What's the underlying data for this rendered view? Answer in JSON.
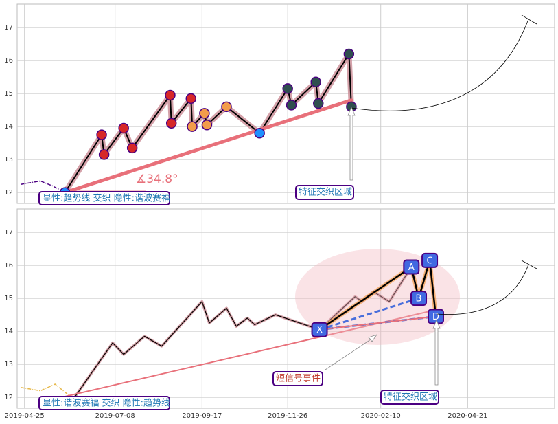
{
  "chart_data": [
    {
      "type": "line",
      "ylim": [
        11.67,
        17.71
      ],
      "yticks": [
        12,
        13,
        14,
        15,
        16,
        17
      ],
      "grid": true,
      "price": {
        "color": "#4b0082",
        "x": [
          "2019-04-22",
          "2019-05-08",
          "2019-05-18",
          "2019-05-28",
          "2019-06-27",
          "2019-06-29",
          "2019-07-15",
          "2019-07-22",
          "2019-08-22",
          "2019-08-23",
          "2019-09-08",
          "2019-09-09",
          "2019-09-19",
          "2019-09-21",
          "2019-10-07",
          "2019-11-03",
          "2019-11-26",
          "2019-11-29",
          "2019-12-19",
          "2019-12-21",
          "2020-01-15",
          "2020-01-17"
        ],
        "values": [
          12.25,
          12.35,
          12.2,
          12.0,
          13.75,
          13.15,
          13.95,
          13.35,
          14.95,
          14.1,
          14.85,
          14.0,
          14.4,
          14.05,
          14.6,
          13.8,
          15.15,
          14.65,
          15.35,
          14.7,
          16.2,
          14.6
        ]
      },
      "zigzag": {
        "color": "#000000",
        "band_color": "#c98a94",
        "x": [
          "2019-05-28",
          "2019-06-27",
          "2019-06-29",
          "2019-07-15",
          "2019-07-22",
          "2019-08-22",
          "2019-08-23",
          "2019-09-08",
          "2019-09-09",
          "2019-09-19",
          "2019-09-21",
          "2019-10-07",
          "2019-11-03",
          "2019-11-26",
          "2019-11-29",
          "2019-12-19",
          "2019-12-21",
          "2020-01-15",
          "2020-01-17"
        ],
        "values": [
          12.0,
          13.75,
          13.15,
          13.95,
          13.35,
          14.95,
          14.1,
          14.85,
          14.0,
          14.4,
          14.05,
          14.6,
          13.8,
          15.15,
          14.65,
          15.35,
          14.7,
          16.2,
          14.6
        ],
        "marker_colors": [
          "#1e90ff",
          "#d62728",
          "#d62728",
          "#d62728",
          "#d62728",
          "#d62728",
          "#d62728",
          "#d62728",
          "#f39c4a",
          "#f39c4a",
          "#f39c4a",
          "#f39c4a",
          "#1e90ff",
          "#2f4f4f",
          "#2f4f4f",
          "#2f4f4f",
          "#2f4f4f",
          "#2f4f4f",
          "#2f4f4f"
        ]
      },
      "trendline": {
        "color": "#e8707a",
        "x": [
          "2019-05-28",
          "2020-01-17"
        ],
        "values": [
          12.0,
          14.8
        ]
      },
      "angle_label": "∡34.8°",
      "annotations": [
        {
          "text": "显性:趋势线 交织 隐性:谐波赛福"
        },
        {
          "text": "特征交织区域"
        }
      ]
    },
    {
      "type": "line",
      "xlim": [
        "2019-04-19",
        "2020-07-01"
      ],
      "xticks": [
        "2019-04-25",
        "2019-07-08",
        "2019-09-17",
        "2019-11-26",
        "2020-02-10",
        "2020-04-21"
      ],
      "ylim": [
        11.67,
        17.71
      ],
      "yticks": [
        12,
        13,
        14,
        15,
        16,
        17
      ],
      "grid": true,
      "price": {
        "color": "#e6b84a",
        "x": [
          "2019-04-22",
          "2019-05-08",
          "2019-05-20",
          "2019-06-04",
          "2019-07-06",
          "2019-07-15",
          "2019-08-01",
          "2019-08-15",
          "2019-09-17",
          "2019-09-23",
          "2019-10-07",
          "2019-10-15",
          "2019-10-24",
          "2019-10-30",
          "2019-11-16",
          "2019-12-22",
          "2020-01-20",
          "2020-01-26",
          "2020-02-04",
          "2020-02-17",
          "2020-03-06"
        ],
        "values": [
          12.3,
          12.2,
          12.4,
          11.95,
          13.65,
          13.3,
          13.85,
          13.55,
          14.9,
          14.25,
          14.7,
          14.15,
          14.4,
          14.2,
          14.5,
          14.05,
          15.05,
          14.9,
          15.2,
          14.9,
          15.95
        ]
      },
      "zigzag": {
        "color": "#000000",
        "band_color": "#c98a94",
        "x": [
          "2019-06-04",
          "2019-07-06",
          "2019-07-15",
          "2019-08-01",
          "2019-08-15",
          "2019-09-17",
          "2019-09-23",
          "2019-10-07",
          "2019-10-15",
          "2019-10-24",
          "2019-10-30",
          "2019-11-16",
          "2019-12-22",
          "2020-01-20",
          "2020-01-26",
          "2020-02-04",
          "2020-02-17",
          "2020-03-06"
        ],
        "values": [
          11.95,
          13.65,
          13.3,
          13.85,
          13.55,
          14.9,
          14.25,
          14.7,
          14.15,
          14.4,
          14.2,
          14.5,
          14.05,
          15.05,
          14.9,
          15.2,
          14.9,
          15.95
        ]
      },
      "trendline": {
        "color": "#e8707a",
        "x": [
          "2019-05-08",
          "2020-03-26"
        ],
        "values": [
          11.85,
          14.65
        ]
      },
      "pattern": [
        {
          "label": "X",
          "x": "2019-12-22",
          "y": 14.05
        },
        {
          "label": "A",
          "x": "2020-03-06",
          "y": 15.95
        },
        {
          "label": "B",
          "x": "2020-03-12",
          "y": 15.0
        },
        {
          "label": "C",
          "x": "2020-03-21",
          "y": 16.15
        },
        {
          "label": "D",
          "x": "2020-03-26",
          "y": 14.45
        }
      ],
      "annotations": [
        {
          "text": "显性:谐波赛福 交织 隐性:趋势线"
        },
        {
          "text": "短信号事件"
        },
        {
          "text": "特征交织区域"
        }
      ]
    }
  ]
}
